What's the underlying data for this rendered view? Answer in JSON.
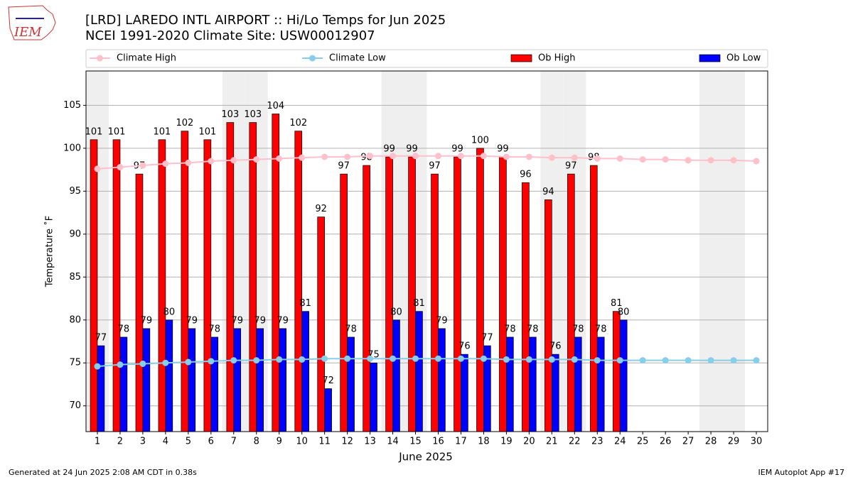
{
  "chart_data": {
    "type": "bar",
    "title": "[LRD] LAREDO INTL AIRPORT :: Hi/Lo Temps for Jun 2025",
    "subtitle": "NCEI 1991-2020 Climate Site: USW00012907",
    "logo": "IEM",
    "x_label": "June 2025",
    "y_label": "Temperature ˚F",
    "footer_left": "Generated at 24 Jun 2025 2:08 AM CDT in 0.38s",
    "footer_right": "IEM Autoplot App #17",
    "x": [
      1,
      2,
      3,
      4,
      5,
      6,
      7,
      8,
      9,
      10,
      11,
      12,
      13,
      14,
      15,
      16,
      17,
      18,
      19,
      20,
      21,
      22,
      23,
      24,
      25,
      26,
      27,
      28,
      29,
      30
    ],
    "xlim": [
      0.5,
      30.5
    ],
    "xticks": [
      1,
      2,
      3,
      4,
      5,
      6,
      7,
      8,
      9,
      10,
      11,
      12,
      13,
      14,
      15,
      16,
      17,
      18,
      19,
      20,
      21,
      22,
      23,
      24,
      25,
      26,
      27,
      28,
      29,
      30
    ],
    "ylim": [
      67,
      109
    ],
    "yticks": [
      70,
      75,
      80,
      85,
      90,
      95,
      100,
      105
    ],
    "grid": true,
    "legend": "top",
    "shaded_days": [
      1,
      7,
      8,
      14,
      15,
      21,
      22,
      28,
      29
    ],
    "shade_color": "#efefef",
    "series": [
      {
        "name": "Climate High",
        "type": "line",
        "color": "#ffc0cb",
        "values": [
          97.6,
          97.8,
          98.0,
          98.2,
          98.3,
          98.5,
          98.6,
          98.7,
          98.8,
          98.9,
          99.0,
          99.0,
          99.1,
          99.1,
          99.1,
          99.1,
          99.1,
          99.1,
          99.0,
          99.0,
          98.9,
          98.9,
          98.8,
          98.8,
          98.7,
          98.7,
          98.6,
          98.6,
          98.6,
          98.5
        ]
      },
      {
        "name": "Climate Low",
        "type": "line",
        "color": "#87ceeb",
        "values": [
          74.6,
          74.8,
          74.9,
          75.0,
          75.1,
          75.2,
          75.3,
          75.3,
          75.4,
          75.4,
          75.5,
          75.5,
          75.5,
          75.5,
          75.5,
          75.5,
          75.5,
          75.5,
          75.4,
          75.4,
          75.4,
          75.4,
          75.3,
          75.3,
          75.3,
          75.3,
          75.3,
          75.3,
          75.3,
          75.3
        ]
      },
      {
        "name": "Ob High",
        "type": "bar",
        "offset": -1,
        "color": "#ff0000",
        "values": [
          101,
          101,
          97,
          101,
          102,
          101,
          103,
          103,
          104,
          102,
          92,
          97,
          98,
          99,
          99,
          97,
          99,
          100,
          99,
          96,
          94,
          97,
          98,
          81,
          null,
          null,
          null,
          null,
          null,
          null
        ]
      },
      {
        "name": "Ob Low",
        "type": "bar",
        "offset": 1,
        "color": "#0000ff",
        "values": [
          77,
          78,
          79,
          80,
          79,
          78,
          79,
          79,
          79,
          81,
          72,
          78,
          75,
          80,
          81,
          79,
          76,
          77,
          78,
          78,
          76,
          78,
          78,
          80,
          null,
          null,
          null,
          null,
          null,
          null
        ]
      }
    ]
  }
}
